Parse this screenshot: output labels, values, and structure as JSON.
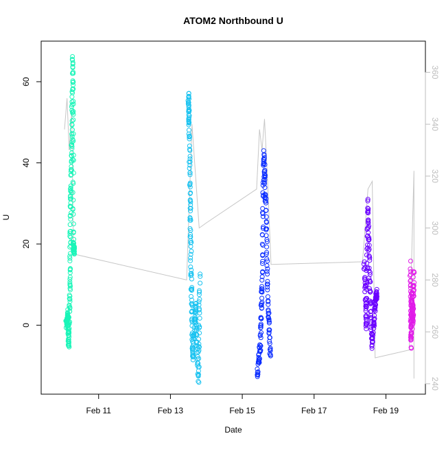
{
  "chart_data": {
    "type": "scatter",
    "title": "ATOM2 Northbound U",
    "xlabel": "Date",
    "ylabel": "U",
    "y2label": "",
    "xlim": [
      9.4,
      20.1
    ],
    "ylim": [
      -17,
      70
    ],
    "y2lim": [
      236,
      372
    ],
    "x_ticks": [
      11,
      13,
      15,
      17,
      19
    ],
    "x_tick_labels": [
      "Feb 11",
      "Feb 13",
      "Feb 15",
      "Feb 17",
      "Feb 19"
    ],
    "y_ticks": [
      0,
      20,
      40,
      60
    ],
    "y_tick_labels": [
      "0",
      "20",
      "40",
      "60"
    ],
    "y2_ticks": [
      240,
      260,
      280,
      300,
      320,
      340,
      360
    ],
    "y2_tick_labels": [
      "240",
      "260",
      "280",
      "300",
      "320",
      "340",
      "360"
    ],
    "grid": false,
    "legend": "none",
    "series": [
      {
        "color": "#19f5b8",
        "x_range": [
          10.1,
          10.35
        ],
        "samples": [
          [
            10.1,
            0
          ],
          [
            10.14,
            3
          ],
          [
            10.17,
            -5
          ],
          [
            10.2,
            10
          ],
          [
            10.22,
            30
          ],
          [
            10.25,
            45
          ],
          [
            10.28,
            66
          ],
          [
            10.3,
            20
          ],
          [
            10.32,
            18
          ]
        ]
      },
      {
        "color": "#18c2f0",
        "x_range": [
          13.45,
          13.85
        ],
        "samples": [
          [
            13.5,
            57
          ],
          [
            13.52,
            50
          ],
          [
            13.55,
            30
          ],
          [
            13.58,
            10
          ],
          [
            13.62,
            -8
          ],
          [
            13.7,
            5
          ],
          [
            13.78,
            -13
          ],
          [
            13.82,
            12
          ]
        ]
      },
      {
        "color": "#0a2cff",
        "x_range": [
          15.4,
          15.8
        ],
        "samples": [
          [
            15.42,
            -12
          ],
          [
            15.5,
            -5
          ],
          [
            15.55,
            10
          ],
          [
            15.6,
            42
          ],
          [
            15.65,
            30
          ],
          [
            15.72,
            5
          ],
          [
            15.78,
            -8
          ]
        ]
      },
      {
        "color": "#6a00ff",
        "x_range": [
          18.35,
          18.75
        ],
        "samples": [
          [
            18.4,
            16
          ],
          [
            18.45,
            -1
          ],
          [
            18.5,
            30
          ],
          [
            18.55,
            10
          ],
          [
            18.62,
            -5
          ],
          [
            18.7,
            5
          ],
          [
            18.75,
            8
          ]
        ]
      },
      {
        "color": "#e01ae8",
        "x_range": [
          19.65,
          19.8
        ],
        "samples": [
          [
            19.68,
            15
          ],
          [
            19.7,
            -5
          ],
          [
            19.72,
            8
          ],
          [
            19.75,
            0
          ],
          [
            19.78,
            13
          ]
        ]
      }
    ],
    "secondary_line": {
      "color": "#c6c6c6",
      "points": [
        [
          10.05,
          338
        ],
        [
          10.12,
          350
        ],
        [
          10.18,
          330
        ],
        [
          10.25,
          345
        ],
        [
          10.3,
          290
        ],
        [
          13.45,
          280
        ],
        [
          13.6,
          340
        ],
        [
          13.8,
          300
        ],
        [
          14.0,
          302
        ],
        [
          15.4,
          315
        ],
        [
          15.48,
          338
        ],
        [
          15.55,
          330
        ],
        [
          15.62,
          342
        ],
        [
          15.7,
          320
        ],
        [
          15.8,
          286
        ],
        [
          18.35,
          287
        ],
        [
          18.5,
          315
        ],
        [
          18.62,
          318
        ],
        [
          18.7,
          250
        ],
        [
          19.65,
          253
        ],
        [
          19.78,
          322
        ],
        [
          19.78,
          242
        ]
      ]
    }
  }
}
